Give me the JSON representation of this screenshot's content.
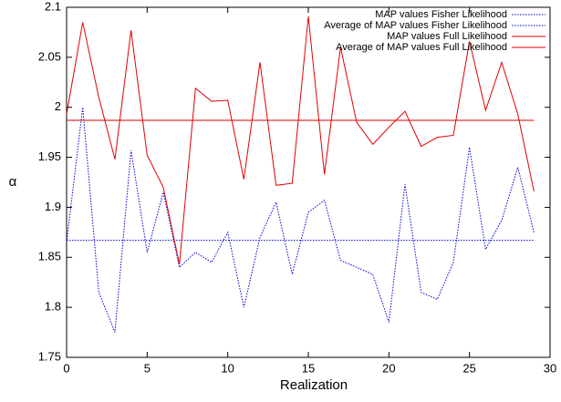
{
  "chart_data": {
    "type": "line",
    "xlabel": "Realization",
    "ylabel": "α",
    "xlim": [
      0,
      30
    ],
    "xticks": [
      0,
      5,
      10,
      15,
      20,
      25,
      30
    ],
    "ylim": [
      1.75,
      2.1
    ],
    "yticks": [
      1.75,
      1.8,
      1.85,
      1.9,
      1.95,
      2,
      2.05,
      2.1
    ],
    "legend": "top-right",
    "series": [
      {
        "name": "MAP values Fisher Likelihood",
        "color": "#0000e0",
        "style": "dotted",
        "x": [
          0,
          1,
          2,
          3,
          4,
          5,
          6,
          7,
          8,
          9,
          10,
          11,
          12,
          13,
          14,
          15,
          16,
          17,
          18,
          19,
          20,
          21,
          22,
          23,
          24,
          25,
          26,
          27,
          28,
          29
        ],
        "values": [
          1.865,
          2.0,
          1.815,
          1.775,
          1.957,
          1.855,
          1.915,
          1.84,
          1.855,
          1.845,
          1.875,
          1.8,
          1.87,
          1.905,
          1.833,
          1.895,
          1.907,
          1.847,
          1.84,
          1.833,
          1.785,
          1.923,
          1.815,
          1.808,
          1.845,
          1.96,
          1.858,
          1.887,
          1.94,
          1.875
        ]
      },
      {
        "name": "Average of MAP values Fisher Likelihood",
        "color": "#0000e0",
        "style": "dotted",
        "x": [
          0,
          29
        ],
        "values": [
          1.867,
          1.867
        ]
      },
      {
        "name": "MAP values Full Likelihood",
        "color": "#e00000",
        "style": "solid",
        "x": [
          0,
          1,
          2,
          3,
          4,
          5,
          6,
          7,
          8,
          9,
          10,
          11,
          12,
          13,
          14,
          15,
          16,
          17,
          18,
          19,
          20,
          21,
          22,
          23,
          24,
          25,
          26,
          27,
          28,
          29
        ],
        "values": [
          1.993,
          2.085,
          2.01,
          1.948,
          2.077,
          1.952,
          1.92,
          1.843,
          2.019,
          2.006,
          2.007,
          1.928,
          2.045,
          1.922,
          1.924,
          2.091,
          1.933,
          2.06,
          1.985,
          1.963,
          1.98,
          1.996,
          1.961,
          1.97,
          1.972,
          2.066,
          1.997,
          2.045,
          1.993,
          1.916
        ]
      },
      {
        "name": "Average of MAP values Full Likelihood",
        "color": "#e00000",
        "style": "solid",
        "x": [
          0,
          29
        ],
        "values": [
          1.987,
          1.987
        ]
      }
    ]
  }
}
